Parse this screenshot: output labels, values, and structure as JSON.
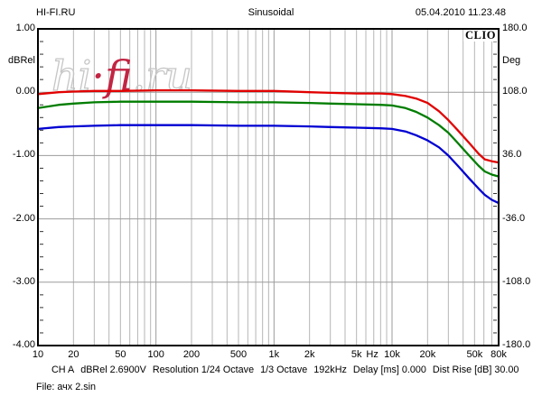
{
  "header": {
    "site": "HI-FI.RU",
    "title": "Sinusoidal",
    "datetime": "05.04.2010 11.23.48"
  },
  "plot": {
    "brand": "CLIO"
  },
  "watermark": {
    "segments": [
      {
        "text": "hi",
        "style": "outline"
      },
      {
        "text": "·f",
        "style": "red"
      },
      {
        "text": "i.ru",
        "style": "outline"
      }
    ]
  },
  "axes": {
    "left": {
      "title": "dBRel",
      "ticks": [
        "1.00",
        "0.00",
        "-1.00",
        "-2.00",
        "-3.00",
        "-4.00"
      ]
    },
    "right": {
      "title": "Deg",
      "ticks": [
        "180.0",
        "108.0",
        "36.0",
        "-36.0",
        "-108.0",
        "-180.0"
      ]
    },
    "x": {
      "ticks": [
        {
          "f": 10,
          "label": "10"
        },
        {
          "f": 20,
          "label": "20"
        },
        {
          "f": 50,
          "label": "50"
        },
        {
          "f": 100,
          "label": "100"
        },
        {
          "f": 200,
          "label": "200"
        },
        {
          "f": 500,
          "label": "500"
        },
        {
          "f": 1000,
          "label": "1k"
        },
        {
          "f": 2000,
          "label": "2k"
        },
        {
          "f": 5000,
          "label": "5k"
        },
        {
          "f": 10000,
          "label": "10k"
        },
        {
          "f": 20000,
          "label": "20k"
        },
        {
          "f": 50000,
          "label": "50k"
        },
        {
          "f": 80000,
          "label": "80k"
        }
      ],
      "unit": {
        "label": "Hz",
        "f": 6800
      }
    }
  },
  "status": {
    "segments": [
      "CH A",
      "dBRel 2.6900V",
      "Resolution 1/24 Octave",
      "1/3 Octave",
      "192kHz",
      "Delay [ms] 0.000",
      "Dist Rise [dB] 30.00"
    ]
  },
  "file_line": "File: ачх 2.sin",
  "chart_data": {
    "type": "line",
    "title": "Sinusoidal",
    "x_scale": "log",
    "x_range": [
      10,
      80000
    ],
    "xlabel": "Hz",
    "y_left": {
      "label": "dBRel",
      "range": [
        -4.0,
        1.0
      ],
      "major_step": 1.0,
      "minor_step": 0.2
    },
    "y_right": {
      "label": "Deg",
      "range": [
        -180.0,
        180.0
      ],
      "major_step": 72.0
    },
    "grid": true,
    "legend": "none",
    "colors": {
      "grid": "#b6b6b6",
      "grid_decade": "#9b9b9b",
      "frame": "#000000",
      "watermark_outline": "#c6c6c6",
      "watermark_red": "#c22543"
    },
    "series": [
      {
        "name": "curve-red",
        "color": "#e10000",
        "points": [
          [
            10,
            -0.03
          ],
          [
            15,
            0.0
          ],
          [
            20,
            0.01
          ],
          [
            30,
            0.02
          ],
          [
            50,
            0.02
          ],
          [
            100,
            0.03
          ],
          [
            200,
            0.03
          ],
          [
            500,
            0.02
          ],
          [
            1000,
            0.02
          ],
          [
            2000,
            0.0
          ],
          [
            3000,
            -0.01
          ],
          [
            5000,
            -0.02
          ],
          [
            8000,
            -0.02
          ],
          [
            10000,
            -0.03
          ],
          [
            13000,
            -0.06
          ],
          [
            16000,
            -0.1
          ],
          [
            20000,
            -0.17
          ],
          [
            25000,
            -0.3
          ],
          [
            30000,
            -0.44
          ],
          [
            36000,
            -0.6
          ],
          [
            45000,
            -0.8
          ],
          [
            54000,
            -0.97
          ],
          [
            61000,
            -1.06
          ],
          [
            70000,
            -1.09
          ],
          [
            80000,
            -1.11
          ]
        ]
      },
      {
        "name": "curve-green",
        "color": "#007d00",
        "points": [
          [
            10,
            -0.25
          ],
          [
            15,
            -0.2
          ],
          [
            20,
            -0.18
          ],
          [
            30,
            -0.16
          ],
          [
            50,
            -0.15
          ],
          [
            100,
            -0.15
          ],
          [
            200,
            -0.15
          ],
          [
            500,
            -0.16
          ],
          [
            1000,
            -0.16
          ],
          [
            2000,
            -0.17
          ],
          [
            3000,
            -0.18
          ],
          [
            5000,
            -0.19
          ],
          [
            8000,
            -0.2
          ],
          [
            10000,
            -0.21
          ],
          [
            13000,
            -0.25
          ],
          [
            16000,
            -0.31
          ],
          [
            20000,
            -0.4
          ],
          [
            25000,
            -0.52
          ],
          [
            30000,
            -0.64
          ],
          [
            36000,
            -0.8
          ],
          [
            45000,
            -1.0
          ],
          [
            54000,
            -1.16
          ],
          [
            61000,
            -1.25
          ],
          [
            70000,
            -1.3
          ],
          [
            80000,
            -1.33
          ]
        ]
      },
      {
        "name": "curve-blue",
        "color": "#0000d2",
        "points": [
          [
            10,
            -0.58
          ],
          [
            15,
            -0.55
          ],
          [
            20,
            -0.54
          ],
          [
            30,
            -0.53
          ],
          [
            50,
            -0.52
          ],
          [
            100,
            -0.52
          ],
          [
            200,
            -0.52
          ],
          [
            500,
            -0.53
          ],
          [
            1000,
            -0.53
          ],
          [
            2000,
            -0.54
          ],
          [
            3000,
            -0.55
          ],
          [
            5000,
            -0.56
          ],
          [
            8000,
            -0.57
          ],
          [
            10000,
            -0.58
          ],
          [
            13000,
            -0.62
          ],
          [
            16000,
            -0.68
          ],
          [
            20000,
            -0.76
          ],
          [
            25000,
            -0.87
          ],
          [
            30000,
            -1.0
          ],
          [
            36000,
            -1.16
          ],
          [
            45000,
            -1.36
          ],
          [
            54000,
            -1.52
          ],
          [
            61000,
            -1.62
          ],
          [
            70000,
            -1.7
          ],
          [
            80000,
            -1.75
          ]
        ]
      }
    ]
  }
}
